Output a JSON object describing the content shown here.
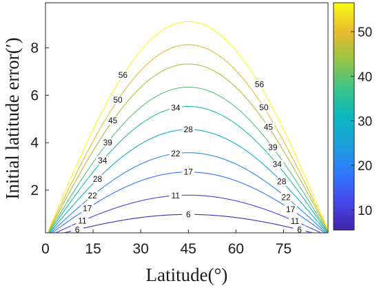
{
  "chart_data": {
    "type": "contour",
    "xlabel": "Latitude(°)",
    "ylabel": "Initial latitude error(′)",
    "xlim": [
      0,
      89
    ],
    "ylim": [
      0.2,
      9.9
    ],
    "x_ticks": [
      0,
      15,
      30,
      45,
      60,
      75
    ],
    "y_ticks": [
      2,
      4,
      6,
      8
    ],
    "grid": false,
    "function": "z = y * sin(2x) / cos(x)^2 ... approximated as z = k*y/sin(2x) form",
    "levels": [
      6,
      11,
      17,
      22,
      28,
      34,
      39,
      45,
      50,
      56
    ],
    "colorbar": {
      "ticks": [
        10,
        20,
        30,
        40,
        50
      ],
      "range": [
        5.5,
        56.5
      ],
      "colormap": "parula"
    }
  }
}
